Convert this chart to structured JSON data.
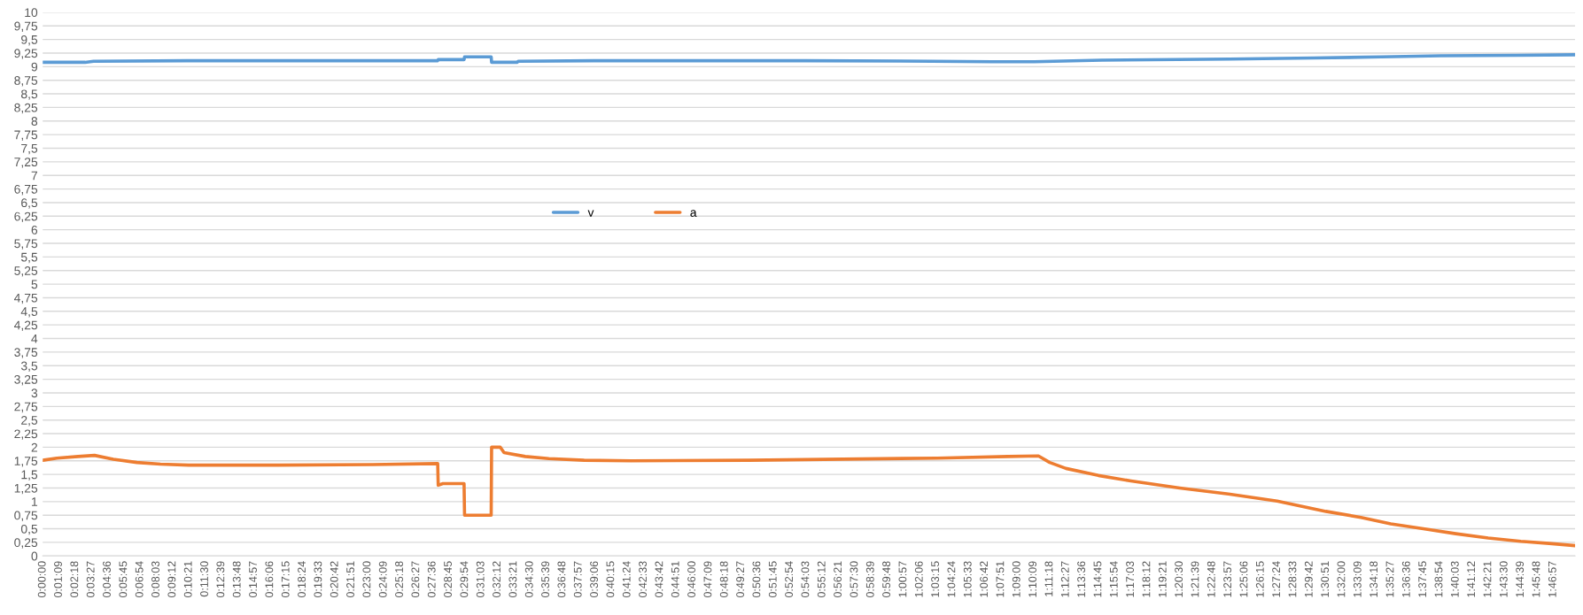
{
  "chart_data": {
    "type": "line",
    "xlim": [
      0,
      1.8083
    ],
    "ylim": [
      0,
      10
    ],
    "xticks": [
      {
        "value": 0,
        "label": "0:00:00"
      },
      {
        "value": 0.01917,
        "label": "0:01:09"
      },
      {
        "value": 0.03833,
        "label": "0:02:18"
      },
      {
        "value": 0.0575,
        "label": "0:03:27"
      },
      {
        "value": 0.07667,
        "label": "0:04:36"
      },
      {
        "value": 0.09583,
        "label": "0:05:45"
      },
      {
        "value": 0.115,
        "label": "0:06:54"
      },
      {
        "value": 0.13417,
        "label": "0:08:03"
      },
      {
        "value": 0.15333,
        "label": "0:09:12"
      },
      {
        "value": 0.1725,
        "label": "0:10:21"
      },
      {
        "value": 0.19167,
        "label": "0:11:30"
      },
      {
        "value": 0.21083,
        "label": "0:12:39"
      },
      {
        "value": 0.23,
        "label": "0:13:48"
      },
      {
        "value": 0.24917,
        "label": "0:14:57"
      },
      {
        "value": 0.26833,
        "label": "0:16:06"
      },
      {
        "value": 0.2875,
        "label": "0:17:15"
      },
      {
        "value": 0.30667,
        "label": "0:18:24"
      },
      {
        "value": 0.32583,
        "label": "0:19:33"
      },
      {
        "value": 0.345,
        "label": "0:20:42"
      },
      {
        "value": 0.36417,
        "label": "0:21:51"
      },
      {
        "value": 0.38333,
        "label": "0:23:00"
      },
      {
        "value": 0.4025,
        "label": "0:24:09"
      },
      {
        "value": 0.42167,
        "label": "0:25:18"
      },
      {
        "value": 0.44083,
        "label": "0:26:27"
      },
      {
        "value": 0.46,
        "label": "0:27:36"
      },
      {
        "value": 0.47917,
        "label": "0:28:45"
      },
      {
        "value": 0.49833,
        "label": "0:29:54"
      },
      {
        "value": 0.5175,
        "label": "0:31:03"
      },
      {
        "value": 0.53667,
        "label": "0:32:12"
      },
      {
        "value": 0.55583,
        "label": "0:33:21"
      },
      {
        "value": 0.575,
        "label": "0:34:30"
      },
      {
        "value": 0.59417,
        "label": "0:35:39"
      },
      {
        "value": 0.61333,
        "label": "0:36:48"
      },
      {
        "value": 0.6325,
        "label": "0:37:57"
      },
      {
        "value": 0.65167,
        "label": "0:39:06"
      },
      {
        "value": 0.67083,
        "label": "0:40:15"
      },
      {
        "value": 0.69,
        "label": "0:41:24"
      },
      {
        "value": 0.70917,
        "label": "0:42:33"
      },
      {
        "value": 0.72833,
        "label": "0:43:42"
      },
      {
        "value": 0.7475,
        "label": "0:44:51"
      },
      {
        "value": 0.76667,
        "label": "0:46:00"
      },
      {
        "value": 0.78583,
        "label": "0:47:09"
      },
      {
        "value": 0.805,
        "label": "0:48:18"
      },
      {
        "value": 0.82417,
        "label": "0:49:27"
      },
      {
        "value": 0.84333,
        "label": "0:50:36"
      },
      {
        "value": 0.8625,
        "label": "0:51:45"
      },
      {
        "value": 0.88167,
        "label": "0:52:54"
      },
      {
        "value": 0.90083,
        "label": "0:54:03"
      },
      {
        "value": 0.92,
        "label": "0:55:12"
      },
      {
        "value": 0.93917,
        "label": "0:56:21"
      },
      {
        "value": 0.95833,
        "label": "0:57:30"
      },
      {
        "value": 0.9775,
        "label": "0:58:39"
      },
      {
        "value": 0.99667,
        "label": "0:59:48"
      },
      {
        "value": 1.01583,
        "label": "1:00:57"
      },
      {
        "value": 1.035,
        "label": "1:02:06"
      },
      {
        "value": 1.05417,
        "label": "1:03:15"
      },
      {
        "value": 1.07333,
        "label": "1:04:24"
      },
      {
        "value": 1.0925,
        "label": "1:05:33"
      },
      {
        "value": 1.11167,
        "label": "1:06:42"
      },
      {
        "value": 1.13083,
        "label": "1:07:51"
      },
      {
        "value": 1.15,
        "label": "1:09:00"
      },
      {
        "value": 1.16917,
        "label": "1:10:09"
      },
      {
        "value": 1.18833,
        "label": "1:11:18"
      },
      {
        "value": 1.2075,
        "label": "1:12:27"
      },
      {
        "value": 1.22667,
        "label": "1:13:36"
      },
      {
        "value": 1.24583,
        "label": "1:14:45"
      },
      {
        "value": 1.265,
        "label": "1:15:54"
      },
      {
        "value": 1.28417,
        "label": "1:17:03"
      },
      {
        "value": 1.30333,
        "label": "1:18:12"
      },
      {
        "value": 1.3225,
        "label": "1:19:21"
      },
      {
        "value": 1.34167,
        "label": "1:20:30"
      },
      {
        "value": 1.36083,
        "label": "1:21:39"
      },
      {
        "value": 1.38,
        "label": "1:22:48"
      },
      {
        "value": 1.39917,
        "label": "1:23:57"
      },
      {
        "value": 1.41833,
        "label": "1:25:06"
      },
      {
        "value": 1.4375,
        "label": "1:26:15"
      },
      {
        "value": 1.45667,
        "label": "1:27:24"
      },
      {
        "value": 1.47583,
        "label": "1:28:33"
      },
      {
        "value": 1.495,
        "label": "1:29:42"
      },
      {
        "value": 1.51417,
        "label": "1:30:51"
      },
      {
        "value": 1.53333,
        "label": "1:32:00"
      },
      {
        "value": 1.5525,
        "label": "1:33:09"
      },
      {
        "value": 1.57167,
        "label": "1:34:18"
      },
      {
        "value": 1.59083,
        "label": "1:35:27"
      },
      {
        "value": 1.61,
        "label": "1:36:36"
      },
      {
        "value": 1.62917,
        "label": "1:37:45"
      },
      {
        "value": 1.64833,
        "label": "1:38:54"
      },
      {
        "value": 1.6675,
        "label": "1:40:03"
      },
      {
        "value": 1.68667,
        "label": "1:41:12"
      },
      {
        "value": 1.70583,
        "label": "1:42:21"
      },
      {
        "value": 1.725,
        "label": "1:43:30"
      },
      {
        "value": 1.74417,
        "label": "1:44:39"
      },
      {
        "value": 1.76333,
        "label": "1:45:48"
      },
      {
        "value": 1.7825,
        "label": "1:46:57"
      }
    ],
    "yticks": [
      0,
      {
        "value": 0.25,
        "label": "0,25"
      },
      {
        "value": 0.5,
        "label": "0,5"
      },
      {
        "value": 0.75,
        "label": "0,75"
      },
      1,
      {
        "value": 1.25,
        "label": "1,25"
      },
      {
        "value": 1.5,
        "label": "1,5"
      },
      {
        "value": 1.75,
        "label": "1,75"
      },
      2,
      {
        "value": 2.25,
        "label": "2,25"
      },
      {
        "value": 2.5,
        "label": "2,5"
      },
      {
        "value": 2.75,
        "label": "2,75"
      },
      3,
      {
        "value": 3.25,
        "label": "3,25"
      },
      {
        "value": 3.5,
        "label": "3,5"
      },
      {
        "value": 3.75,
        "label": "3,75"
      },
      4,
      {
        "value": 4.25,
        "label": "4,25"
      },
      {
        "value": 4.5,
        "label": "4,5"
      },
      {
        "value": 4.75,
        "label": "4,75"
      },
      5,
      {
        "value": 5.25,
        "label": "5,25"
      },
      {
        "value": 5.5,
        "label": "5,5"
      },
      {
        "value": 5.75,
        "label": "5,75"
      },
      6,
      {
        "value": 6.25,
        "label": "6,25"
      },
      {
        "value": 6.5,
        "label": "6,5"
      },
      {
        "value": 6.75,
        "label": "6,75"
      },
      7,
      {
        "value": 7.25,
        "label": "7,25"
      },
      {
        "value": 7.5,
        "label": "7,5"
      },
      {
        "value": 7.75,
        "label": "7,75"
      },
      8,
      {
        "value": 8.25,
        "label": "8,25"
      },
      {
        "value": 8.5,
        "label": "8,5"
      },
      {
        "value": 8.75,
        "label": "8,75"
      },
      9,
      {
        "value": 9.25,
        "label": "9,25"
      },
      {
        "value": 9.5,
        "label": "9,5"
      },
      {
        "value": 9.75,
        "label": "9,75"
      },
      10
    ],
    "grid": "y",
    "legend": "center",
    "marker": "none",
    "line_style": "solid",
    "series": [
      {
        "name": "v",
        "color": "#5b9bd5",
        "x": [
          0,
          0.05,
          0.06,
          0.17,
          0.466,
          0.4667,
          0.4972,
          0.4978,
          0.5292,
          0.5297,
          0.56,
          0.5611,
          0.65,
          0.9,
          1.05,
          1.12,
          1.17,
          1.25,
          1.4,
          1.5,
          1.58,
          1.65,
          1.74,
          1.8083
        ],
        "values": [
          9.08,
          9.08,
          9.1,
          9.11,
          9.11,
          9.13,
          9.13,
          9.18,
          9.18,
          9.08,
          9.08,
          9.1,
          9.11,
          9.11,
          9.1,
          9.09,
          9.09,
          9.12,
          9.14,
          9.16,
          9.18,
          9.2,
          9.21,
          9.22
        ]
      },
      {
        "name": "a",
        "color": "#ed7d31",
        "x": [
          0,
          0.0167,
          0.0417,
          0.0611,
          0.0833,
          0.1111,
          0.1389,
          0.1722,
          0.2778,
          0.3889,
          0.4661,
          0.4667,
          0.4722,
          0.4972,
          0.4978,
          0.5292,
          0.5297,
          0.54,
          0.5444,
          0.5694,
          0.5972,
          0.6389,
          0.6944,
          0.8333,
          0.9444,
          1.0556,
          1.1389,
          1.175,
          1.1883,
          1.2075,
          1.2458,
          1.2842,
          1.3417,
          1.3992,
          1.4567,
          1.5142,
          1.5556,
          1.5908,
          1.6292,
          1.6675,
          1.7058,
          1.7442,
          1.7778,
          1.8083
        ],
        "values": [
          1.76,
          1.8,
          1.83,
          1.85,
          1.78,
          1.72,
          1.69,
          1.67,
          1.67,
          1.68,
          1.7,
          1.3,
          1.33,
          1.33,
          0.75,
          0.75,
          2.0,
          2.0,
          1.9,
          1.83,
          1.79,
          1.76,
          1.75,
          1.76,
          1.78,
          1.8,
          1.83,
          1.84,
          1.72,
          1.61,
          1.48,
          1.38,
          1.25,
          1.14,
          1.01,
          0.82,
          0.71,
          0.59,
          0.5,
          0.41,
          0.33,
          0.27,
          0.23,
          0.19
        ]
      }
    ]
  }
}
